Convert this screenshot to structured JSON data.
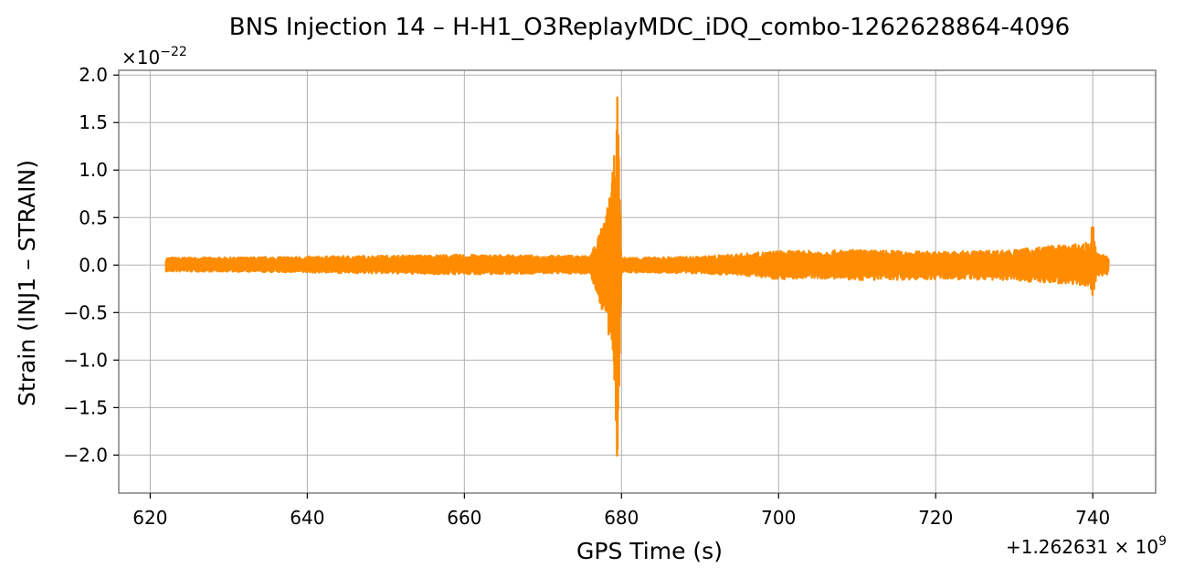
{
  "chart_data": {
    "type": "line",
    "title": "BNS Injection 14 – H-H1_O3ReplayMDC_iDQ_combo-1262628864-4096",
    "xlabel": "GPS Time (s)",
    "ylabel": "Strain (INJ1 – STRAIN)",
    "x_offset_label": "+1.262631 × 10",
    "x_offset_exponent": "9",
    "y_multiplier_label": "×10",
    "y_multiplier_exponent": "−22",
    "xlim": [
      616,
      748
    ],
    "ylim": [
      -2.4,
      2.05
    ],
    "x_ticks": [
      {
        "value": 620,
        "label": "620"
      },
      {
        "value": 640,
        "label": "640"
      },
      {
        "value": 660,
        "label": "660"
      },
      {
        "value": 680,
        "label": "680"
      },
      {
        "value": 700,
        "label": "700"
      },
      {
        "value": 720,
        "label": "720"
      },
      {
        "value": 740,
        "label": "740"
      }
    ],
    "y_ticks": [
      {
        "value": 2.0,
        "label": "2.0"
      },
      {
        "value": 1.5,
        "label": "1.5"
      },
      {
        "value": 1.0,
        "label": "1.0"
      },
      {
        "value": 0.5,
        "label": "0.5"
      },
      {
        "value": 0.0,
        "label": "0.0"
      },
      {
        "value": -0.5,
        "label": "−0.5"
      },
      {
        "value": -1.0,
        "label": "−1.0"
      },
      {
        "value": -1.5,
        "label": "−1.5"
      },
      {
        "value": -2.0,
        "label": "−2.0"
      }
    ],
    "grid": true,
    "series": [
      {
        "color": "#ff8c00",
        "envelope": {
          "x": [
            622,
            630,
            640,
            650,
            660,
            670,
            676,
            678,
            679,
            679.5,
            680,
            682,
            690,
            697,
            700,
            705,
            710,
            720,
            730,
            734,
            738,
            739.5,
            740,
            740.5,
            742
          ],
          "upper": [
            0.08,
            0.08,
            0.09,
            0.1,
            0.11,
            0.1,
            0.1,
            0.5,
            1.05,
            1.83,
            0.08,
            0.08,
            0.09,
            0.13,
            0.15,
            0.15,
            0.16,
            0.14,
            0.16,
            0.2,
            0.22,
            0.24,
            0.46,
            0.12,
            0.1
          ],
          "lower": [
            -0.07,
            -0.07,
            -0.08,
            -0.09,
            -0.1,
            -0.09,
            -0.09,
            -0.6,
            -1.1,
            -2.17,
            -0.08,
            -0.08,
            -0.09,
            -0.12,
            -0.15,
            -0.14,
            -0.16,
            -0.15,
            -0.16,
            -0.19,
            -0.2,
            -0.24,
            -0.32,
            -0.12,
            -0.1
          ]
        }
      }
    ]
  }
}
